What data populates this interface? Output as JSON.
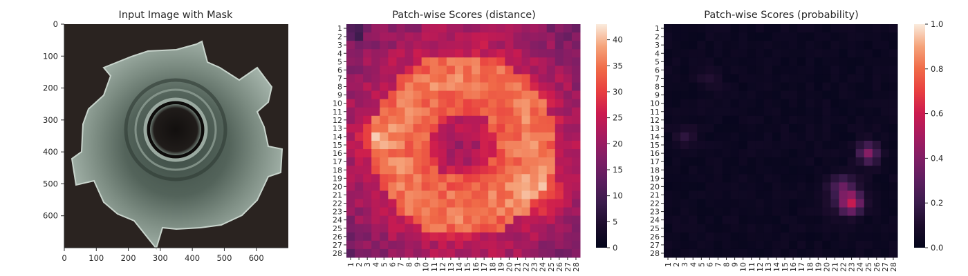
{
  "charts": [
    {
      "title": "Input Image with Mask",
      "type": "image",
      "x_ticks": [
        0,
        100,
        200,
        300,
        400,
        500,
        600
      ],
      "y_ticks": [
        0,
        100,
        200,
        300,
        400,
        500,
        600
      ],
      "extent": [
        0,
        700
      ]
    },
    {
      "title": "Patch-wise Scores (distance)",
      "type": "heatmap",
      "colorbar_ticks": [
        0,
        5,
        10,
        15,
        20,
        25,
        30,
        35,
        40
      ],
      "colorbar_range": [
        0,
        43
      ],
      "colormap": "rocket"
    },
    {
      "title": "Patch-wise Scores (probability)",
      "type": "heatmap",
      "colorbar_ticks": [
        "0.0",
        "0.2",
        "0.4",
        "0.6",
        "0.8",
        "1.0"
      ],
      "colorbar_range": [
        0,
        1
      ],
      "colormap": "rocket"
    }
  ],
  "chart_data": [
    {
      "type": "image",
      "title": "Input Image with Mask",
      "x_range": [
        0,
        700
      ],
      "y_range": [
        0,
        700
      ],
      "subject": "metal nut on dark background"
    },
    {
      "type": "heatmap",
      "title": "Patch-wise Scores (distance)",
      "rows": 28,
      "cols": 28,
      "row_labels": [
        "1",
        "2",
        "3",
        "4",
        "5",
        "6",
        "7",
        "8",
        "9",
        "10",
        "11",
        "12",
        "13",
        "14",
        "15",
        "16",
        "17",
        "18",
        "19",
        "20",
        "21",
        "22",
        "23",
        "24",
        "25",
        "26",
        "27",
        "28"
      ],
      "col_labels": [
        "1",
        "2",
        "3",
        "4",
        "5",
        "6",
        "7",
        "8",
        "9",
        "10",
        "11",
        "12",
        "13",
        "14",
        "15",
        "16",
        "17",
        "18",
        "19",
        "20",
        "21",
        "22",
        "23",
        "24",
        "25",
        "26",
        "27",
        "28"
      ],
      "vmin": 0,
      "vmax": 43,
      "description_values": {
        "border_typical": 22,
        "ring_typical": 34,
        "center_typical": 21,
        "peak_near": [
          22,
          24
        ],
        "peak_value": 42
      }
    },
    {
      "type": "heatmap",
      "title": "Patch-wise Scores (probability)",
      "rows": 28,
      "cols": 28,
      "row_labels": [
        "1",
        "2",
        "3",
        "4",
        "5",
        "6",
        "7",
        "8",
        "9",
        "10",
        "11",
        "12",
        "13",
        "14",
        "15",
        "16",
        "17",
        "18",
        "19",
        "20",
        "21",
        "22",
        "23",
        "24",
        "25",
        "26",
        "27",
        "28"
      ],
      "col_labels": [
        "1",
        "2",
        "3",
        "4",
        "5",
        "6",
        "7",
        "8",
        "9",
        "10",
        "11",
        "12",
        "13",
        "14",
        "15",
        "16",
        "17",
        "18",
        "19",
        "20",
        "21",
        "22",
        "23",
        "24",
        "25",
        "26",
        "27",
        "28"
      ],
      "vmin": 0,
      "vmax": 1.0,
      "hotspots": [
        {
          "row": 22,
          "col": 23,
          "value": 0.5
        },
        {
          "row": 16,
          "col": 25,
          "value": 0.4
        },
        {
          "row": 20,
          "col": 22,
          "value": 0.2
        },
        {
          "row": 14,
          "col": 3,
          "value": 0.12
        },
        {
          "row": 7,
          "col": 6,
          "value": 0.1
        }
      ]
    }
  ]
}
